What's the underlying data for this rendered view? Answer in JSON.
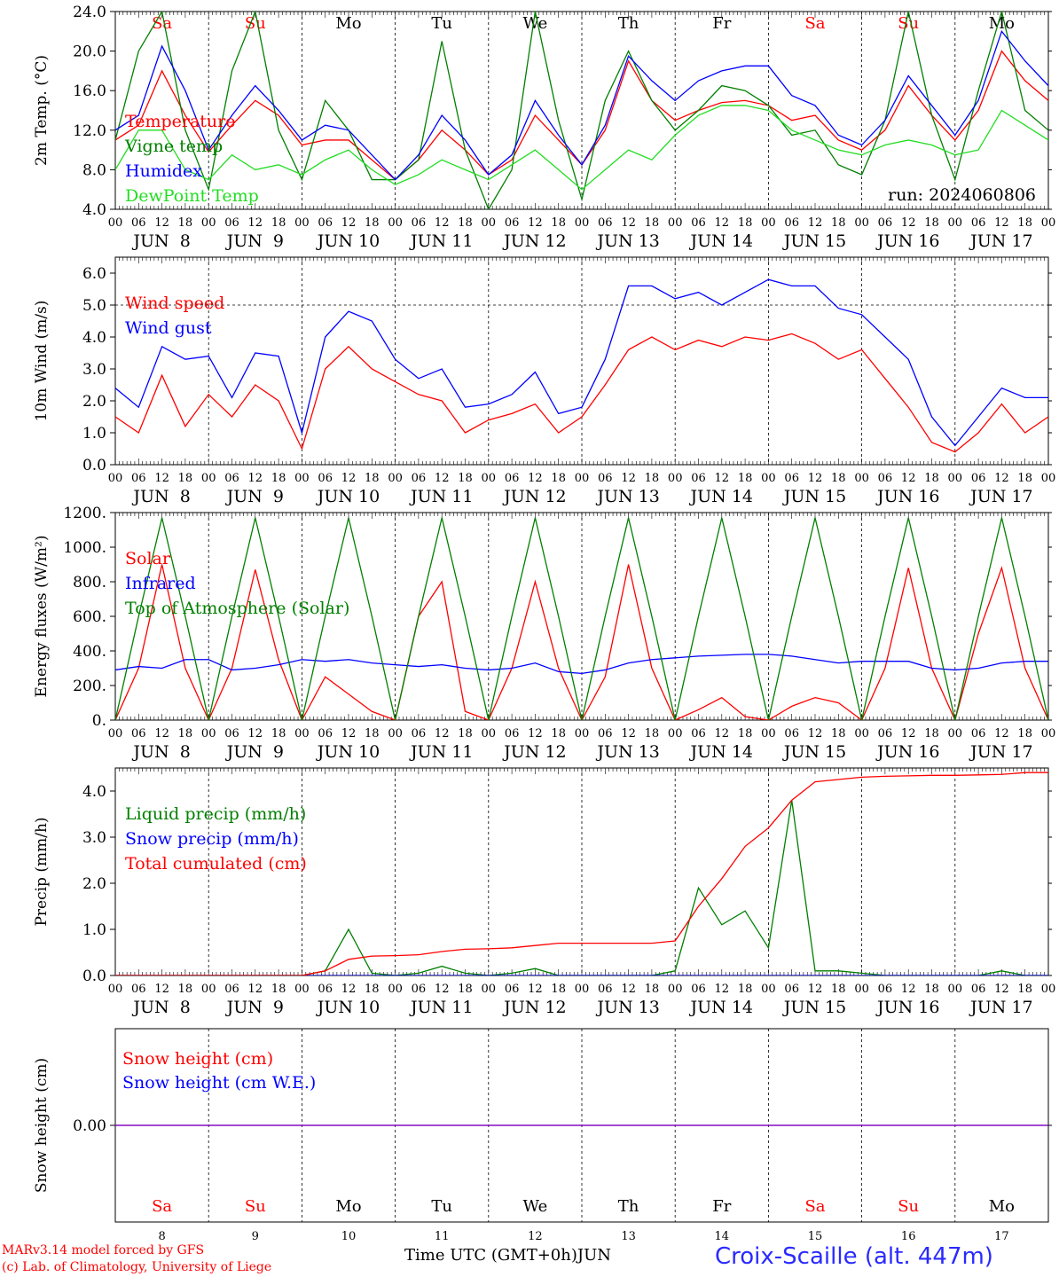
{
  "colors": {
    "red": "#ff0000",
    "green": "#007f00",
    "blue": "#0000ff",
    "lightgreen": "#22dd22",
    "purple": "#7f00bf",
    "site": "#2a2aff",
    "axis": "#000000"
  },
  "footer": {
    "model": "MARv3.14 model forced by GFS",
    "lab": "(c) Lab. of Climatology, University of Liege",
    "xlabel": "Time UTC (GMT+0h)",
    "month": "JUN",
    "site": "Croix-Scaille (alt. 447m)"
  },
  "chart_data": [
    {
      "type": "line",
      "ylabel": "2m Temp. (°C)",
      "ylim": [
        4,
        24
      ],
      "yticks": [
        "4.0",
        "8.0",
        "12.0",
        "16.0",
        "20.0",
        "24.0"
      ],
      "run_label": "run: 2024060806",
      "day_names": [
        "Sa",
        "Su",
        "Mo",
        "Tu",
        "We",
        "Th",
        "Fr",
        "Sa",
        "Su",
        "Mo"
      ],
      "day_colors": [
        "red",
        "red",
        "black",
        "black",
        "black",
        "black",
        "black",
        "red",
        "red",
        "black"
      ],
      "xtick_hours": [
        "00",
        "06",
        "12",
        "18"
      ],
      "xdates": [
        "JUN  8",
        "JUN  9",
        "JUN 10",
        "JUN 11",
        "JUN 12",
        "JUN 13",
        "JUN 14",
        "JUN 15",
        "JUN 16",
        "JUN 17"
      ],
      "x_hours": [
        0,
        6,
        12,
        18,
        24,
        30,
        36,
        42,
        48,
        54,
        60,
        66,
        72,
        78,
        84,
        90,
        96,
        102,
        108,
        114,
        120,
        126,
        132,
        138,
        144,
        150,
        156,
        162,
        168,
        174,
        180,
        186,
        192,
        198,
        204,
        210,
        216,
        222,
        228,
        234,
        240
      ],
      "series": [
        {
          "name": "Temperature",
          "color": "red",
          "values": [
            11.0,
            12.5,
            18.0,
            13.5,
            9.8,
            12.5,
            15.0,
            13.5,
            10.5,
            11.0,
            11.0,
            9.0,
            7.0,
            9.0,
            12.0,
            10.0,
            7.5,
            9.0,
            13.5,
            11.0,
            8.5,
            12.0,
            19.0,
            15.0,
            13.0,
            14.0,
            14.8,
            15.0,
            14.5,
            13.0,
            13.5,
            11.0,
            10.0,
            12.0,
            16.5,
            13.5,
            11.0,
            14.0,
            20.0,
            17.0,
            15.0
          ]
        },
        {
          "name": "Vigne temp",
          "color": "green",
          "values": [
            11.0,
            20.0,
            24.0,
            12.0,
            6.0,
            18.0,
            24.0,
            12.0,
            7.0,
            15.0,
            12.0,
            7.0,
            7.0,
            9.0,
            21.0,
            10.0,
            4.0,
            8.0,
            24.0,
            13.0,
            5.0,
            15.0,
            20.0,
            15.0,
            12.0,
            14.0,
            16.5,
            16.0,
            14.5,
            11.5,
            12.0,
            8.5,
            7.5,
            13.0,
            24.0,
            13.5,
            7.0,
            16.0,
            24.0,
            14.0,
            12.0
          ]
        },
        {
          "name": "Humidex",
          "color": "blue",
          "values": [
            12.0,
            13.5,
            20.5,
            16.0,
            10.0,
            13.5,
            16.5,
            14.0,
            11.0,
            12.5,
            12.0,
            9.5,
            7.0,
            9.5,
            13.5,
            11.0,
            7.5,
            9.5,
            15.0,
            11.5,
            8.5,
            12.5,
            19.5,
            17.0,
            15.0,
            17.0,
            18.0,
            18.5,
            18.5,
            15.5,
            14.5,
            11.5,
            10.5,
            13.0,
            17.5,
            14.5,
            11.5,
            15.0,
            22.0,
            19.0,
            16.5
          ]
        },
        {
          "name": "DewPoint Temp",
          "color": "lightgreen",
          "values": [
            8.0,
            12.0,
            12.0,
            8.0,
            7.0,
            9.5,
            8.0,
            8.5,
            7.5,
            9.0,
            10.0,
            8.0,
            6.5,
            7.5,
            9.0,
            8.0,
            7.0,
            8.5,
            10.0,
            8.0,
            6.0,
            8.0,
            10.0,
            9.0,
            11.5,
            13.5,
            14.5,
            14.5,
            14.0,
            12.0,
            11.0,
            10.0,
            9.5,
            10.5,
            11.0,
            10.5,
            9.5,
            10.0,
            14.0,
            12.5,
            11.0
          ]
        }
      ]
    },
    {
      "type": "line",
      "ylabel": "10m Wind (m/s)",
      "ylim": [
        0,
        6.5
      ],
      "yticks": [
        "0.0",
        "1.0",
        "2.0",
        "3.0",
        "4.0",
        "5.0",
        "6.0"
      ],
      "ref_line": 5.0,
      "xtick_hours": [
        "00",
        "06",
        "12",
        "18"
      ],
      "xdates": [
        "JUN  8",
        "JUN  9",
        "JUN 10",
        "JUN 11",
        "JUN 12",
        "JUN 13",
        "JUN 14",
        "JUN 15",
        "JUN 16",
        "JUN 17"
      ],
      "x_hours": [
        0,
        6,
        12,
        18,
        24,
        30,
        36,
        42,
        48,
        54,
        60,
        66,
        72,
        78,
        84,
        90,
        96,
        102,
        108,
        114,
        120,
        126,
        132,
        138,
        144,
        150,
        156,
        162,
        168,
        174,
        180,
        186,
        192,
        198,
        204,
        210,
        216,
        222,
        228,
        234,
        240
      ],
      "series": [
        {
          "name": "Wind speed",
          "color": "red",
          "values": [
            1.5,
            1.0,
            2.8,
            1.2,
            2.2,
            1.5,
            2.5,
            2.0,
            0.5,
            3.0,
            3.7,
            3.0,
            2.6,
            2.2,
            2.0,
            1.0,
            1.4,
            1.6,
            1.9,
            1.0,
            1.5,
            2.5,
            3.6,
            4.0,
            3.6,
            3.9,
            3.7,
            4.0,
            3.9,
            4.1,
            3.8,
            3.3,
            3.6,
            2.7,
            1.8,
            0.7,
            0.4,
            1.0,
            1.9,
            1.0,
            1.5
          ]
        },
        {
          "name": "Wind gust",
          "color": "blue",
          "values": [
            2.4,
            1.8,
            3.7,
            3.3,
            3.4,
            2.1,
            3.5,
            3.4,
            1.0,
            4.0,
            4.8,
            4.5,
            3.3,
            2.7,
            3.0,
            1.8,
            1.9,
            2.2,
            2.9,
            1.6,
            1.8,
            3.3,
            5.6,
            5.6,
            5.2,
            5.4,
            5.0,
            5.4,
            5.8,
            5.6,
            5.6,
            4.9,
            4.7,
            4.0,
            3.3,
            1.5,
            0.6,
            1.5,
            2.4,
            2.1,
            2.1
          ]
        }
      ]
    },
    {
      "type": "line",
      "ylabel": "Energy fluxes (W/m²)",
      "ylim": [
        0,
        1200
      ],
      "yticks": [
        "0.",
        "200.",
        "400.",
        "600.",
        "800.",
        "1000.",
        "1200."
      ],
      "xtick_hours": [
        "00",
        "06",
        "12",
        "18"
      ],
      "xdates": [
        "JUN  8",
        "JUN  9",
        "JUN 10",
        "JUN 11",
        "JUN 12",
        "JUN 13",
        "JUN 14",
        "JUN 15",
        "JUN 16",
        "JUN 17"
      ],
      "x_hours": [
        0,
        6,
        12,
        18,
        24,
        30,
        36,
        42,
        48,
        54,
        60,
        66,
        72,
        78,
        84,
        90,
        96,
        102,
        108,
        114,
        120,
        126,
        132,
        138,
        144,
        150,
        156,
        162,
        168,
        174,
        180,
        186,
        192,
        198,
        204,
        210,
        216,
        222,
        228,
        234,
        240
      ],
      "series": [
        {
          "name": "Solar",
          "color": "red",
          "values": [
            0,
            300,
            900,
            300,
            0,
            300,
            870,
            350,
            0,
            250,
            150,
            50,
            0,
            600,
            800,
            50,
            0,
            300,
            800,
            300,
            0,
            250,
            900,
            300,
            0,
            60,
            130,
            20,
            0,
            80,
            130,
            100,
            0,
            300,
            880,
            300,
            0,
            500,
            880,
            300,
            0
          ]
        },
        {
          "name": "Infrared",
          "color": "blue",
          "values": [
            290,
            310,
            300,
            350,
            350,
            290,
            300,
            320,
            350,
            340,
            350,
            330,
            320,
            310,
            320,
            300,
            290,
            300,
            330,
            280,
            270,
            290,
            330,
            350,
            360,
            370,
            375,
            380,
            380,
            370,
            350,
            330,
            340,
            340,
            340,
            300,
            290,
            300,
            330,
            340,
            340
          ]
        },
        {
          "name": "Top of Atmosphere (Solar)",
          "color": "green",
          "values": [
            0,
            600,
            1170,
            600,
            0,
            600,
            1170,
            600,
            0,
            600,
            1170,
            600,
            0,
            600,
            1170,
            600,
            0,
            600,
            1170,
            600,
            0,
            600,
            1170,
            600,
            0,
            600,
            1170,
            600,
            0,
            600,
            1170,
            600,
            0,
            600,
            1170,
            600,
            0,
            600,
            1170,
            600,
            0
          ]
        }
      ]
    },
    {
      "type": "line",
      "ylabel": "Precip (mm/h)",
      "ylim": [
        0,
        4.5
      ],
      "yticks": [
        "0.0",
        "1.0",
        "2.0",
        "3.0",
        "4.0"
      ],
      "xtick_hours": [
        "00",
        "06",
        "12",
        "18"
      ],
      "xdates": [
        "JUN  8",
        "JUN  9",
        "JUN 10",
        "JUN 11",
        "JUN 12",
        "JUN 13",
        "JUN 14",
        "JUN 15",
        "JUN 16",
        "JUN 17"
      ],
      "x_hours": [
        0,
        6,
        12,
        18,
        24,
        30,
        36,
        42,
        48,
        54,
        60,
        66,
        72,
        78,
        84,
        90,
        96,
        102,
        108,
        114,
        120,
        126,
        132,
        138,
        144,
        150,
        156,
        162,
        168,
        174,
        180,
        186,
        192,
        198,
        204,
        210,
        216,
        222,
        228,
        234,
        240
      ],
      "series": [
        {
          "name": "Liquid precip (mm/h)",
          "color": "green",
          "values": [
            0,
            0,
            0,
            0,
            0,
            0,
            0,
            0,
            0,
            0.1,
            1.0,
            0.05,
            0,
            0.05,
            0.2,
            0.05,
            0,
            0.05,
            0.15,
            0,
            0,
            0,
            0,
            0,
            0.1,
            1.9,
            1.1,
            1.4,
            0.6,
            3.8,
            0.1,
            0.1,
            0.05,
            0,
            0,
            0,
            0,
            0,
            0.1,
            0,
            0
          ]
        },
        {
          "name": "Snow precip (mm/h)",
          "color": "blue",
          "values": [
            0,
            0,
            0,
            0,
            0,
            0,
            0,
            0,
            0,
            0,
            0,
            0,
            0,
            0,
            0,
            0,
            0,
            0,
            0,
            0,
            0,
            0,
            0,
            0,
            0,
            0,
            0,
            0,
            0,
            0,
            0,
            0,
            0,
            0,
            0,
            0,
            0,
            0,
            0,
            0,
            0
          ]
        },
        {
          "name": "Total cumulated (cm)",
          "color": "red",
          "values": [
            0,
            0,
            0,
            0,
            0,
            0,
            0,
            0,
            0,
            0.1,
            0.35,
            0.42,
            0.43,
            0.45,
            0.52,
            0.57,
            0.58,
            0.6,
            0.65,
            0.7,
            0.7,
            0.7,
            0.7,
            0.7,
            0.75,
            1.5,
            2.1,
            2.8,
            3.2,
            3.8,
            4.2,
            4.25,
            4.3,
            4.32,
            4.33,
            4.34,
            4.34,
            4.35,
            4.36,
            4.4,
            4.4
          ]
        }
      ]
    },
    {
      "type": "line",
      "ylabel": "Snow height (cm)",
      "yticks": [
        "0.00"
      ],
      "day_names": [
        "Sa",
        "Su",
        "Mo",
        "Tu",
        "We",
        "Th",
        "Fr",
        "Sa",
        "Su",
        "Mo"
      ],
      "day_colors": [
        "red",
        "red",
        "black",
        "black",
        "black",
        "black",
        "black",
        "red",
        "red",
        "black"
      ],
      "day_numbers": [
        "8",
        "9",
        "10",
        "11",
        "12",
        "13",
        "14",
        "15",
        "16",
        "17"
      ],
      "series": [
        {
          "name": "Snow height (cm)",
          "color": "red",
          "values": [
            0,
            0
          ]
        },
        {
          "name": "Snow height (cm W.E.)",
          "color": "blue",
          "values": [
            0,
            0
          ]
        }
      ]
    }
  ]
}
